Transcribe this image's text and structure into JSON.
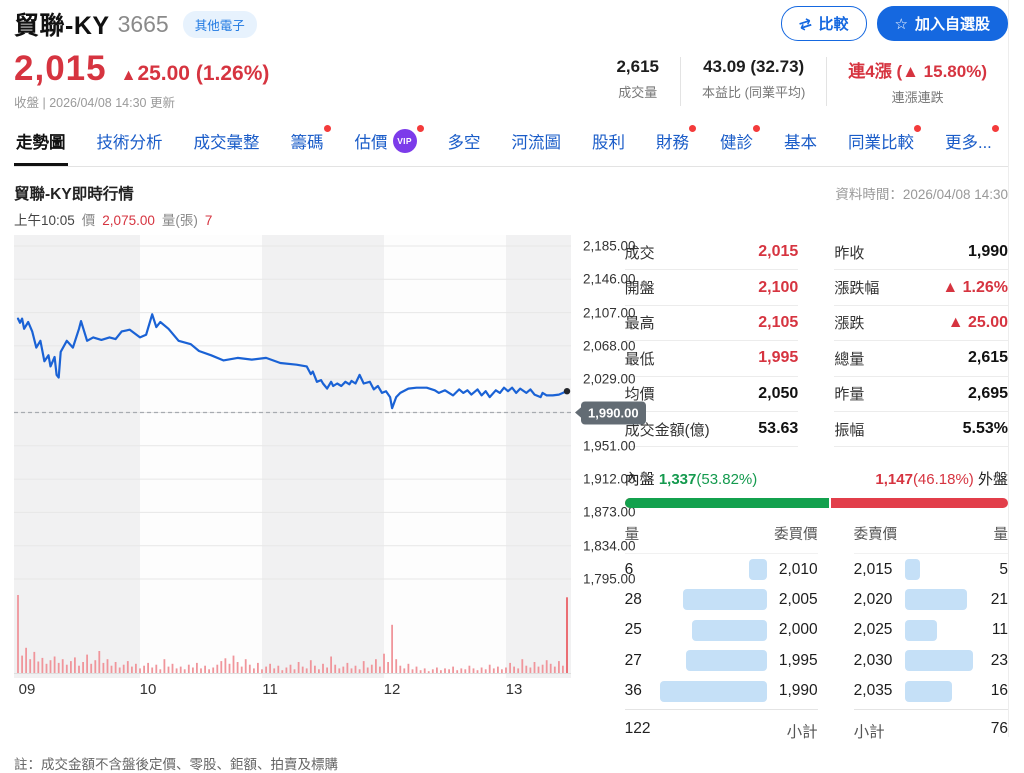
{
  "header": {
    "stock_name": "貿聯-KY",
    "stock_code": "3665",
    "category_badge": "其他電子",
    "price": "2,015",
    "change_arrow": "▲",
    "change_text": "25.00 (1.26%)",
    "update_text": "收盤 | 2026/04/08 14:30 更新",
    "compare_button": "比較",
    "compare_icon": "⇄",
    "watchlist_button": "加入自選股",
    "watchlist_icon": "☆",
    "stats": [
      {
        "value": "2,615",
        "label": "成交量",
        "red": false
      },
      {
        "value": "43.09 (32.73)",
        "label": "本益比 (同業平均)",
        "red": false
      },
      {
        "value": "連4漲 (▲ 15.80%)",
        "label": "連漲連跌",
        "red": true
      }
    ]
  },
  "tabs": [
    {
      "label": "走勢圖",
      "active": true
    },
    {
      "label": "技術分析"
    },
    {
      "label": "成交彙整"
    },
    {
      "label": "籌碼",
      "dot": true
    },
    {
      "label": "估價",
      "vip": true,
      "vip_label": "VIP",
      "dot": true
    },
    {
      "label": "多空"
    },
    {
      "label": "河流圖"
    },
    {
      "label": "股利"
    },
    {
      "label": "財務",
      "dot": true
    },
    {
      "label": "健診",
      "dot": true
    },
    {
      "label": "基本"
    },
    {
      "label": "同業比較",
      "dot": true
    },
    {
      "label": "更多...",
      "dot": true
    }
  ],
  "chart": {
    "title": "貿聯-KY即時行情",
    "data_time": "資料時間：2026/04/08 14:30",
    "tick_time": "上午10:05",
    "tick_price_label": "價",
    "tick_price": "2,075.00",
    "tick_vol_label": "量(張)",
    "tick_vol": "7",
    "note": "註：成交金額不含盤後定價、零股、鉅額、拍賣及標購"
  },
  "chart_data": {
    "type": "line",
    "title": "貿聯-KY即時行情",
    "x_unit": "minutes_after_0900",
    "x_ticks": [
      "09",
      "10",
      "11",
      "12",
      "13"
    ],
    "session_minutes": 270,
    "y_ticks": [
      "2,185.00",
      "2,146.00",
      "2,107.00",
      "2,068.00",
      "2,029.00",
      "1,990.00",
      "1,951.00",
      "1,912.00",
      "1,873.00",
      "1,834.00",
      "1,795.00"
    ],
    "y_tick_values": [
      2185,
      2146,
      2107,
      2068,
      2029,
      1990,
      1951,
      1912,
      1873,
      1834,
      1795
    ],
    "ylim": [
      1795,
      2198
    ],
    "prev_close": 1990,
    "prev_close_tag": "1,990.00",
    "prev_close_tick_index": 5,
    "last_price": 2015,
    "open": 2100,
    "high": 2105,
    "low": 1995,
    "line_color": "#1a62d5",
    "volume_color": "#f0959b",
    "volume_last_color": "#ea5f66",
    "grid_band_colors": [
      "#f1f1f2",
      "#fdfdfd"
    ],
    "price_series": [
      [
        0,
        2100
      ],
      [
        1,
        2095
      ],
      [
        2,
        2100
      ],
      [
        3,
        2088
      ],
      [
        5,
        2096
      ],
      [
        7,
        2085
      ],
      [
        9,
        2066
      ],
      [
        11,
        2074
      ],
      [
        13,
        2050
      ],
      [
        15,
        2057
      ],
      [
        16,
        2044
      ],
      [
        18,
        2055
      ],
      [
        19,
        2034
      ],
      [
        20,
        2031
      ],
      [
        21,
        2061
      ],
      [
        24,
        2074
      ],
      [
        27,
        2066
      ],
      [
        30,
        2088
      ],
      [
        31,
        2097
      ],
      [
        34,
        2074
      ],
      [
        37,
        2078
      ],
      [
        41,
        2075
      ],
      [
        45,
        2078
      ],
      [
        48,
        2076
      ],
      [
        51,
        2085
      ],
      [
        55,
        2087
      ],
      [
        60,
        2078
      ],
      [
        63,
        2081
      ],
      [
        66,
        2105
      ],
      [
        68,
        2090
      ],
      [
        70,
        2096
      ],
      [
        74,
        2088
      ],
      [
        79,
        2074
      ],
      [
        85,
        2070
      ],
      [
        89,
        2062
      ],
      [
        95,
        2057
      ],
      [
        101,
        2051
      ],
      [
        108,
        2054
      ],
      [
        115,
        2052
      ],
      [
        122,
        2054
      ],
      [
        129,
        2048
      ],
      [
        137,
        2046
      ],
      [
        142,
        2044
      ],
      [
        144,
        2035
      ],
      [
        145,
        2038
      ],
      [
        147,
        2026
      ],
      [
        149,
        2028
      ],
      [
        150,
        2024
      ],
      [
        152,
        2018
      ],
      [
        154,
        2026
      ],
      [
        155,
        2021
      ],
      [
        157,
        2024
      ],
      [
        159,
        2021
      ],
      [
        161,
        2026
      ],
      [
        163,
        2023
      ],
      [
        164,
        2027
      ],
      [
        166,
        2024
      ],
      [
        168,
        2034
      ],
      [
        170,
        2024
      ],
      [
        173,
        2026
      ],
      [
        175,
        2017
      ],
      [
        177,
        2021
      ],
      [
        179,
        2013
      ],
      [
        181,
        2015
      ],
      [
        183,
        2008
      ],
      [
        184,
        1995
      ],
      [
        186,
        2008
      ],
      [
        188,
        2013
      ],
      [
        192,
        2018
      ],
      [
        196,
        2019
      ],
      [
        201,
        2019
      ],
      [
        205,
        2016
      ],
      [
        207,
        2013
      ],
      [
        210,
        2016
      ],
      [
        212,
        2013
      ],
      [
        214,
        2010
      ],
      [
        217,
        2017
      ],
      [
        219,
        2013
      ],
      [
        221,
        2016
      ],
      [
        223,
        2011
      ],
      [
        226,
        2017
      ],
      [
        228,
        2010
      ],
      [
        230,
        2015
      ],
      [
        232,
        2008
      ],
      [
        235,
        2016
      ],
      [
        237,
        2013
      ],
      [
        239,
        2019
      ],
      [
        241,
        2015
      ],
      [
        243,
        2019
      ],
      [
        245,
        2013
      ],
      [
        247,
        2018
      ],
      [
        250,
        2013
      ],
      [
        252,
        2017
      ],
      [
        254,
        2011
      ],
      [
        257,
        2008
      ],
      [
        258,
        2013
      ],
      [
        260,
        2010
      ],
      [
        263,
        2010
      ],
      [
        266,
        2011
      ],
      [
        268,
        2013
      ],
      [
        270,
        2015
      ]
    ],
    "volume_series": [
      170,
      38,
      55,
      30,
      46,
      25,
      33,
      20,
      28,
      36,
      22,
      30,
      18,
      26,
      34,
      16,
      24,
      40,
      20,
      28,
      48,
      22,
      30,
      16,
      24,
      12,
      18,
      26,
      14,
      20,
      10,
      16,
      22,
      12,
      18,
      8,
      30,
      14,
      20,
      10,
      14,
      8,
      18,
      12,
      22,
      10,
      16,
      8,
      12,
      18,
      26,
      32,
      20,
      38,
      24,
      14,
      30,
      18,
      10,
      22,
      8,
      14,
      20,
      10,
      16,
      6,
      12,
      18,
      8,
      24,
      14,
      10,
      28,
      16,
      8,
      20,
      12,
      36,
      18,
      10,
      14,
      22,
      10,
      16,
      8,
      26,
      12,
      18,
      30,
      14,
      42,
      24,
      105,
      30,
      16,
      10,
      20,
      8,
      14,
      6,
      10,
      4,
      8,
      12,
      6,
      10,
      8,
      14,
      6,
      10,
      8,
      16,
      10,
      6,
      12,
      8,
      18,
      10,
      14,
      8,
      12,
      22,
      14,
      10,
      30,
      16,
      12,
      24,
      14,
      18,
      28,
      20,
      14,
      26,
      16,
      165
    ]
  },
  "quote": {
    "left": [
      {
        "label": "成交",
        "value": "2,015",
        "red": true
      },
      {
        "label": "開盤",
        "value": "2,100",
        "red": true
      },
      {
        "label": "最高",
        "value": "2,105",
        "red": true
      },
      {
        "label": "最低",
        "value": "1,995",
        "red": true
      },
      {
        "label": "均價",
        "value": "2,050",
        "red": false
      },
      {
        "label": "成交金額(億)",
        "value": "53.63",
        "red": false
      }
    ],
    "right": [
      {
        "label": "昨收",
        "value": "1,990",
        "red": false
      },
      {
        "label": "漲跌幅",
        "value": "▲ 1.26%",
        "red": true
      },
      {
        "label": "漲跌",
        "value": "▲ 25.00",
        "red": true
      },
      {
        "label": "總量",
        "value": "2,615",
        "red": false
      },
      {
        "label": "昨量",
        "value": "2,695",
        "red": false
      },
      {
        "label": "振幅",
        "value": "5.53%",
        "red": false
      }
    ]
  },
  "inner_outer": {
    "inner_label": "內盤",
    "inner_value": "1,337",
    "inner_pct": "(53.82%)",
    "outer_value": "1,147",
    "outer_pct": "(46.18%)",
    "outer_label": "外盤",
    "inner_ratio": 0.5382,
    "green": "#13a14e",
    "red": "#e23e4a"
  },
  "depth": {
    "headers": [
      "量",
      "委買價",
      "委賣價",
      "量"
    ],
    "buy": [
      {
        "qty": 6,
        "price": "2,010"
      },
      {
        "qty": 28,
        "price": "2,005"
      },
      {
        "qty": 25,
        "price": "2,000"
      },
      {
        "qty": 27,
        "price": "1,995"
      },
      {
        "qty": 36,
        "price": "1,990"
      }
    ],
    "sell": [
      {
        "price": "2,015",
        "qty": 5
      },
      {
        "price": "2,020",
        "qty": 21
      },
      {
        "price": "2,025",
        "qty": 11
      },
      {
        "price": "2,030",
        "qty": 23
      },
      {
        "price": "2,035",
        "qty": 16
      }
    ],
    "max_qty": 36,
    "subtotal_label": "小計",
    "subtotal_buy": "122",
    "subtotal_sell": "76",
    "bar_color": "#c5e0f7"
  }
}
